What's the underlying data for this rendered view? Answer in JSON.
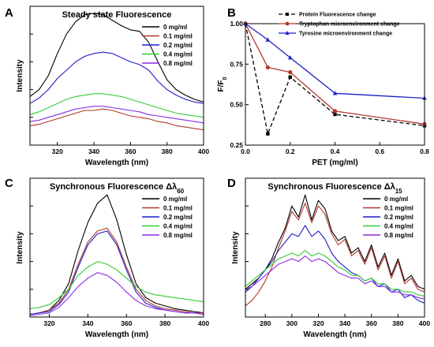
{
  "chart_data": [
    {
      "panel_label": "A",
      "type": "line",
      "title": "Steady state Fluorescence",
      "xlabel": "Wavelength (nm)",
      "ylabel": "Intensity",
      "xlim": [
        305,
        400
      ],
      "ylim": [
        0,
        100
      ],
      "xticks": [
        320,
        340,
        360,
        380,
        400
      ],
      "ytick_labels_shown": false,
      "legend_position": "top-right",
      "series": [
        {
          "name": "0 mg/ml",
          "color": "#000000",
          "x": [
            305,
            310,
            315,
            320,
            325,
            330,
            335,
            340,
            345,
            350,
            355,
            360,
            365,
            370,
            375,
            380,
            385,
            390,
            395,
            400
          ],
          "y": [
            35,
            40,
            50,
            66,
            80,
            89,
            94,
            95,
            94,
            90,
            86,
            83,
            82,
            74,
            60,
            47,
            40,
            36,
            33,
            31
          ]
        },
        {
          "name": "0.1 mg/ml",
          "color": "#b2382c",
          "x": [
            305,
            310,
            315,
            320,
            325,
            330,
            335,
            340,
            345,
            350,
            355,
            360,
            365,
            370,
            375,
            380,
            385,
            390,
            395,
            400
          ],
          "y": [
            14,
            15,
            17,
            19,
            21,
            23,
            25,
            25,
            26,
            25,
            23,
            21,
            20,
            19,
            17,
            16,
            14,
            13,
            12,
            11
          ]
        },
        {
          "name": "0.2 mg/ml",
          "color": "#1f1fc8",
          "x": [
            305,
            310,
            315,
            320,
            325,
            330,
            335,
            340,
            345,
            350,
            355,
            360,
            365,
            370,
            375,
            380,
            385,
            390,
            395,
            400
          ],
          "y": [
            30,
            34,
            40,
            48,
            54,
            60,
            64,
            66,
            67,
            66,
            63,
            60,
            58,
            54,
            46,
            40,
            36,
            33,
            31,
            30
          ]
        },
        {
          "name": "0.4 mg/ml",
          "color": "#33cc33",
          "x": [
            305,
            310,
            315,
            320,
            325,
            330,
            335,
            340,
            345,
            350,
            355,
            360,
            365,
            370,
            375,
            380,
            385,
            390,
            395,
            400
          ],
          "y": [
            22,
            24,
            27,
            30,
            33,
            35,
            36,
            37,
            37,
            36,
            35,
            33,
            31,
            29,
            27,
            25,
            23,
            22,
            21,
            20
          ]
        },
        {
          "name": "0.8 mg/ml",
          "color": "#8a2be2",
          "x": [
            305,
            310,
            315,
            320,
            325,
            330,
            335,
            340,
            345,
            350,
            355,
            360,
            365,
            370,
            375,
            380,
            385,
            390,
            395,
            400
          ],
          "y": [
            17,
            18,
            20,
            22,
            24,
            26,
            27,
            28,
            28,
            27,
            26,
            25,
            24,
            22,
            21,
            20,
            19,
            18,
            17,
            16
          ]
        }
      ]
    },
    {
      "panel_label": "B",
      "type": "line",
      "title": "",
      "xlabel": "PET (mg/ml)",
      "ylabel": "F/F",
      "ylabel_subscript": "0",
      "xlim": [
        0,
        0.8
      ],
      "ylim": [
        0.25,
        1.0
      ],
      "xticks": [
        "0.0",
        "0.2",
        "0.4",
        "0.6",
        "0.8"
      ],
      "yticks": [
        "0.25",
        "0.50",
        "0.75",
        "1.00"
      ],
      "legend_position": "top-right",
      "series": [
        {
          "name": "Protein Fluorescence change",
          "color": "#000000",
          "style": "dashed",
          "marker": "square",
          "x": [
            0,
            0.1,
            0.2,
            0.4,
            0.8
          ],
          "y": [
            1.0,
            0.32,
            0.67,
            0.44,
            0.37
          ]
        },
        {
          "name": "Tryptophan microenvironment change",
          "color": "#b2382c",
          "style": "solid",
          "marker": "circle",
          "x": [
            0,
            0.1,
            0.2,
            0.4,
            0.8
          ],
          "y": [
            1.0,
            0.73,
            0.7,
            0.46,
            0.38
          ]
        },
        {
          "name": "Tyrosine microenvironment change",
          "color": "#1f1fc8",
          "style": "solid",
          "marker": "triangle",
          "x": [
            0,
            0.1,
            0.2,
            0.4,
            0.8
          ],
          "y": [
            1.0,
            0.9,
            0.79,
            0.57,
            0.54
          ]
        }
      ]
    },
    {
      "panel_label": "C",
      "type": "line",
      "title": "Synchronous Fluorescence Δλ",
      "title_subscript": "60",
      "xlabel": "Wavelength (nm)",
      "ylabel": "Intensity",
      "xlim": [
        310,
        400
      ],
      "ylim": [
        0,
        100
      ],
      "xticks": [
        320,
        340,
        360,
        380,
        400
      ],
      "ytick_labels_shown": false,
      "legend_position": "top-right",
      "series": [
        {
          "name": "0 mg/ml",
          "color": "#000000",
          "x": [
            310,
            315,
            320,
            325,
            330,
            335,
            340,
            345,
            350,
            355,
            360,
            365,
            370,
            375,
            380,
            385,
            390,
            395,
            400
          ],
          "y": [
            2,
            3,
            5,
            12,
            24,
            48,
            68,
            82,
            88,
            70,
            45,
            24,
            14,
            10,
            8,
            6,
            5,
            4,
            3
          ]
        },
        {
          "name": "0.1 mg/ml",
          "color": "#b2382c",
          "x": [
            310,
            315,
            320,
            325,
            330,
            335,
            340,
            345,
            350,
            355,
            360,
            365,
            370,
            375,
            380,
            385,
            390,
            395,
            400
          ],
          "y": [
            2,
            3,
            5,
            10,
            20,
            38,
            54,
            62,
            64,
            54,
            36,
            20,
            12,
            8,
            6,
            5,
            4,
            3,
            3
          ]
        },
        {
          "name": "0.2 mg/ml",
          "color": "#1f1fc8",
          "x": [
            310,
            315,
            320,
            325,
            330,
            335,
            340,
            345,
            350,
            355,
            360,
            365,
            370,
            375,
            380,
            385,
            390,
            395,
            400
          ],
          "y": [
            2,
            3,
            4,
            9,
            18,
            36,
            52,
            60,
            62,
            52,
            34,
            18,
            10,
            7,
            5,
            4,
            3,
            3,
            2
          ]
        },
        {
          "name": "0.4 mg/ml",
          "color": "#33cc33",
          "x": [
            310,
            315,
            320,
            325,
            330,
            335,
            340,
            345,
            350,
            355,
            360,
            365,
            370,
            375,
            380,
            385,
            390,
            395,
            400
          ],
          "y": [
            6,
            7,
            9,
            14,
            20,
            30,
            36,
            40,
            38,
            34,
            28,
            22,
            18,
            16,
            15,
            14,
            13,
            12,
            11
          ]
        },
        {
          "name": "0.8 mg/ml",
          "color": "#8a2be2",
          "x": [
            310,
            315,
            320,
            325,
            330,
            335,
            340,
            345,
            350,
            355,
            360,
            365,
            370,
            375,
            380,
            385,
            390,
            395,
            400
          ],
          "y": [
            1,
            2,
            3,
            7,
            14,
            22,
            28,
            32,
            30,
            25,
            18,
            12,
            8,
            6,
            5,
            4,
            3,
            3,
            2
          ]
        }
      ]
    },
    {
      "panel_label": "D",
      "type": "line",
      "title": "Synchronous Fluorescence Δλ",
      "title_subscript": "15",
      "xlabel": "Wavelength (nm)",
      "ylabel": "Intensity",
      "xlim": [
        265,
        400
      ],
      "ylim": [
        0,
        100
      ],
      "xticks": [
        280,
        300,
        320,
        340,
        360,
        380,
        400
      ],
      "ytick_labels_shown": false,
      "legend_position": "top-right",
      "series": [
        {
          "name": "0 mg/ml",
          "color": "#000000",
          "x": [
            265,
            270,
            275,
            280,
            285,
            290,
            295,
            300,
            305,
            310,
            315,
            320,
            325,
            330,
            335,
            340,
            345,
            350,
            355,
            360,
            365,
            370,
            375,
            380,
            385,
            390,
            395,
            400
          ],
          "y": [
            20,
            24,
            28,
            34,
            42,
            54,
            64,
            80,
            72,
            88,
            70,
            84,
            78,
            62,
            55,
            58,
            46,
            50,
            40,
            52,
            36,
            46,
            30,
            42,
            26,
            30,
            22,
            20
          ]
        },
        {
          "name": "0.1 mg/ml",
          "color": "#b2382c",
          "x": [
            265,
            270,
            275,
            280,
            285,
            290,
            295,
            300,
            305,
            310,
            315,
            320,
            325,
            330,
            335,
            340,
            345,
            350,
            355,
            360,
            365,
            370,
            375,
            380,
            385,
            390,
            395,
            400
          ],
          "y": [
            8,
            12,
            18,
            26,
            36,
            50,
            62,
            76,
            70,
            82,
            68,
            80,
            74,
            60,
            52,
            56,
            44,
            48,
            38,
            50,
            34,
            44,
            28,
            40,
            24,
            28,
            20,
            18
          ]
        },
        {
          "name": "0.2 mg/ml",
          "color": "#1f1fc8",
          "x": [
            265,
            270,
            275,
            280,
            285,
            290,
            295,
            300,
            305,
            310,
            315,
            320,
            325,
            330,
            335,
            340,
            345,
            350,
            355,
            360,
            365,
            370,
            375,
            380,
            385,
            390,
            395,
            400
          ],
          "y": [
            18,
            22,
            28,
            34,
            40,
            48,
            54,
            60,
            58,
            66,
            58,
            62,
            56,
            46,
            40,
            36,
            32,
            30,
            26,
            28,
            22,
            24,
            18,
            20,
            14,
            16,
            12,
            10
          ]
        },
        {
          "name": "0.4 mg/ml",
          "color": "#33cc33",
          "x": [
            265,
            270,
            275,
            280,
            285,
            290,
            295,
            300,
            305,
            310,
            315,
            320,
            325,
            330,
            335,
            340,
            345,
            350,
            355,
            360,
            365,
            370,
            375,
            380,
            385,
            390,
            395,
            400
          ],
          "y": [
            22,
            26,
            30,
            34,
            38,
            42,
            44,
            46,
            44,
            48,
            44,
            46,
            44,
            40,
            36,
            34,
            30,
            30,
            26,
            28,
            24,
            24,
            20,
            20,
            18,
            18,
            16,
            15
          ]
        },
        {
          "name": "0.8 mg/ml",
          "color": "#8a2be2",
          "x": [
            265,
            270,
            275,
            280,
            285,
            290,
            295,
            300,
            305,
            310,
            315,
            320,
            325,
            330,
            335,
            340,
            345,
            350,
            355,
            360,
            365,
            370,
            375,
            380,
            385,
            390,
            395,
            400
          ],
          "y": [
            20,
            22,
            26,
            30,
            34,
            38,
            40,
            42,
            40,
            44,
            40,
            42,
            40,
            36,
            32,
            30,
            28,
            28,
            24,
            26,
            22,
            22,
            18,
            18,
            16,
            16,
            14,
            13
          ]
        }
      ]
    }
  ]
}
